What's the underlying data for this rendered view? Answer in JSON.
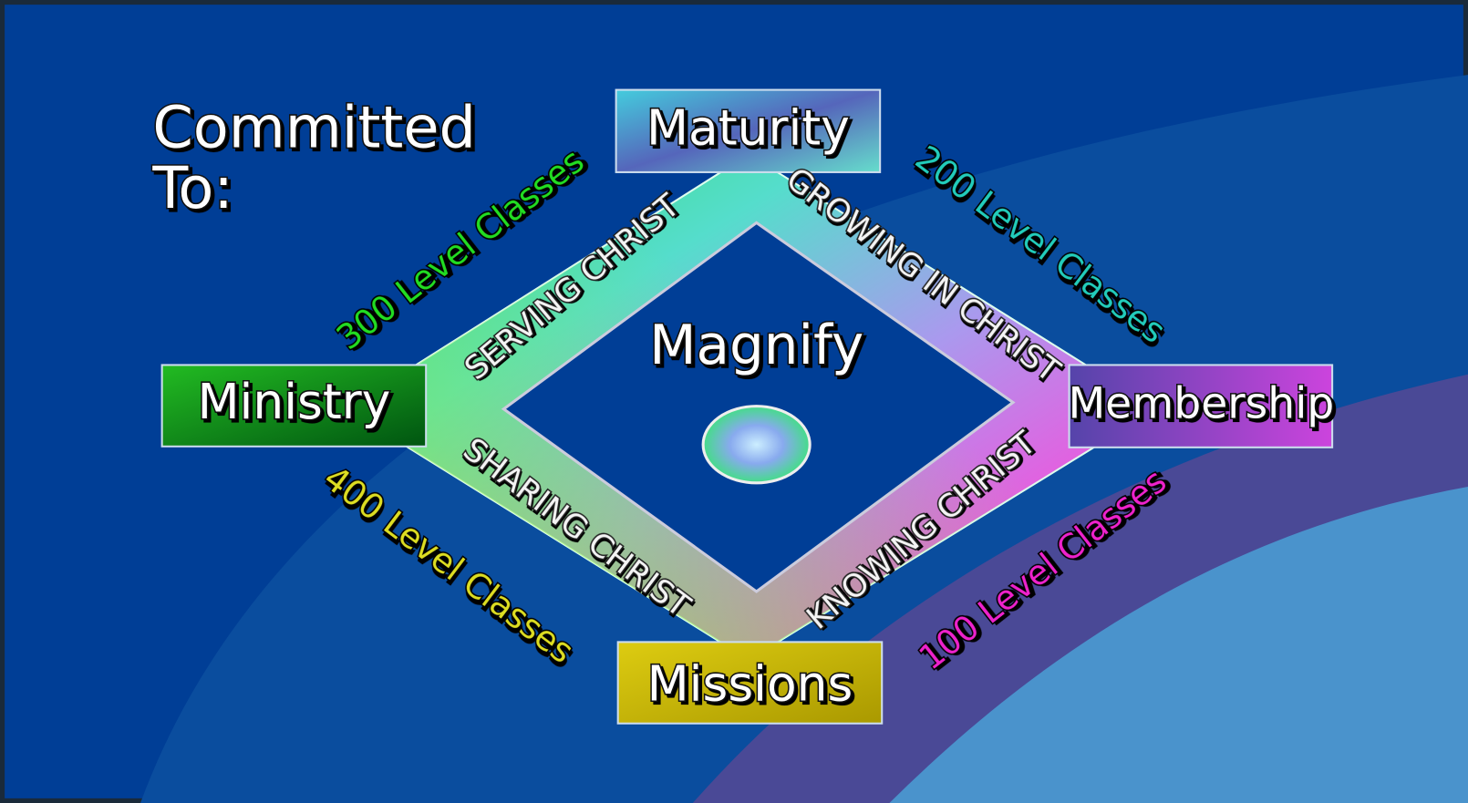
{
  "title": {
    "line1": "Committed",
    "line2": "To:"
  },
  "center": {
    "label": "Magnify"
  },
  "nodes": [
    {
      "label": "Maturity"
    },
    {
      "label": "Ministry"
    },
    {
      "label": "Membership"
    },
    {
      "label": "Missions"
    }
  ],
  "edges": [
    {
      "inner": "SERVING CHRIST",
      "outer": "300 Level Classes"
    },
    {
      "inner": "GROWING IN CHRIST",
      "outer": "200 Level Classes"
    },
    {
      "inner": "KNOWING CHRIST",
      "outer": "100 Level Classes"
    },
    {
      "inner": "SHARING CHRIST",
      "outer": "400 Level Classes"
    }
  ]
}
